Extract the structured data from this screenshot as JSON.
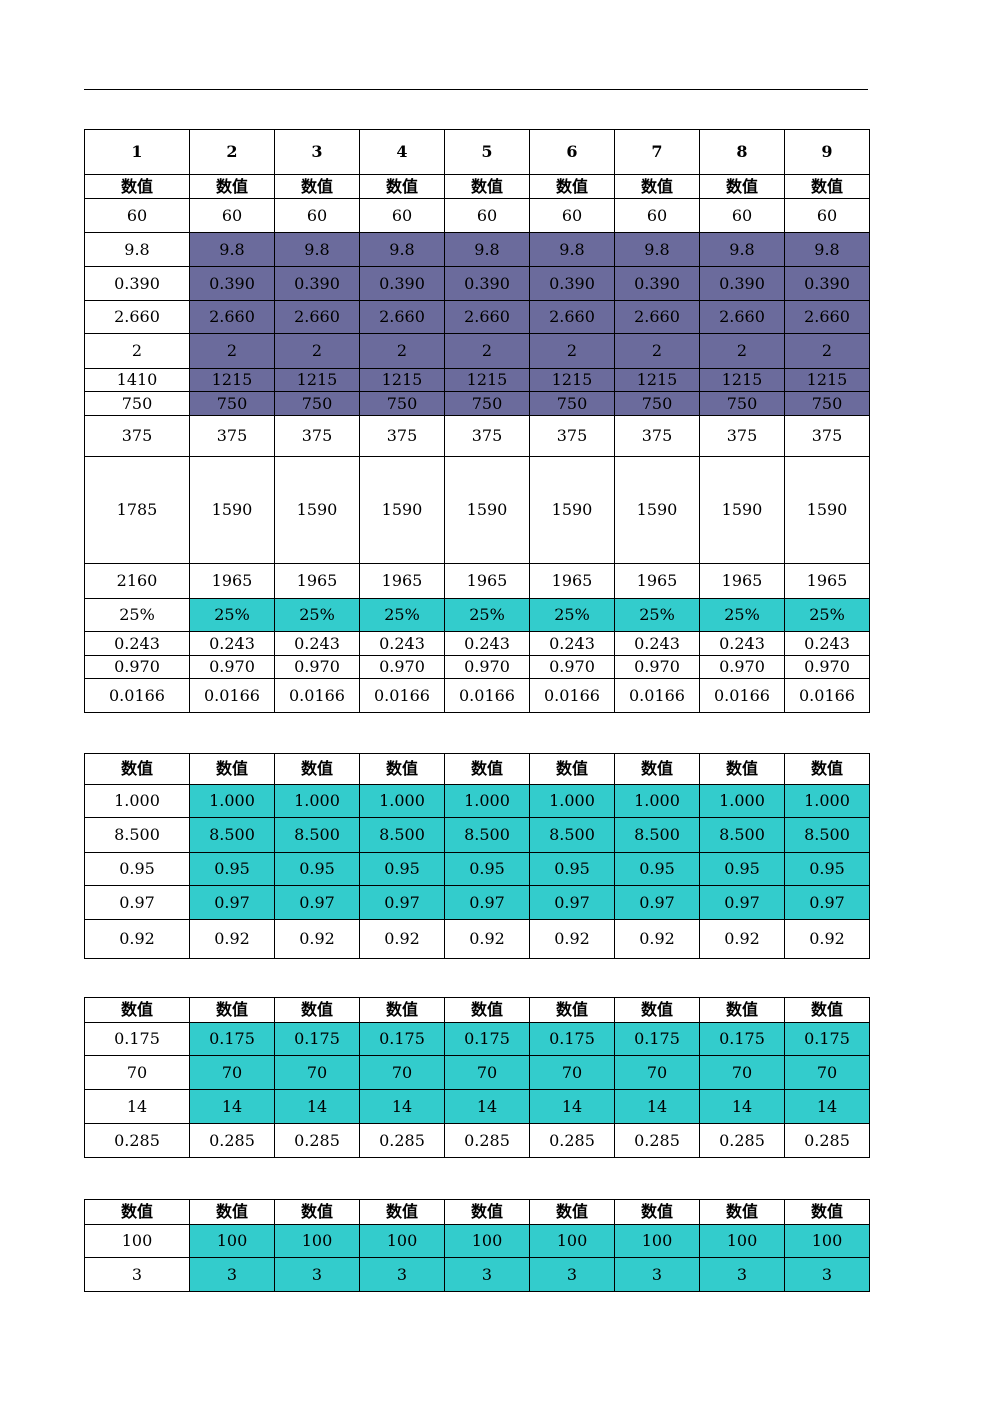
{
  "colors": {
    "purple": "#6b6b9c",
    "teal": "#33cccc",
    "red": "#ff0000"
  },
  "table1": {
    "rows": [
      {
        "style": "hdrbig",
        "fill": "",
        "first_fill": "",
        "cells": [
          "1",
          "2",
          "3",
          "4",
          "5",
          "6",
          "7",
          "8",
          "9"
        ]
      },
      {
        "style": "hdr",
        "fill": "",
        "first_fill": "",
        "cells": [
          "数值",
          "数值",
          "数值",
          "数值",
          "数值",
          "数值",
          "数值",
          "数值",
          "数值"
        ]
      },
      {
        "style": "",
        "fill": "",
        "first_fill": "",
        "cells": [
          "60",
          "60",
          "60",
          "60",
          "60",
          "60",
          "60",
          "60",
          "60"
        ]
      },
      {
        "style": "",
        "fill": "purple",
        "first_fill": "",
        "cells": [
          "9.8",
          "9.8",
          "9.8",
          "9.8",
          "9.8",
          "9.8",
          "9.8",
          "9.8",
          "9.8"
        ]
      },
      {
        "style": "",
        "fill": "purple",
        "first_fill": "",
        "cells": [
          "0.390",
          "0.390",
          "0.390",
          "0.390",
          "0.390",
          "0.390",
          "0.390",
          "0.390",
          "0.390"
        ]
      },
      {
        "style": "",
        "fill": "purple",
        "first_fill": "",
        "cells": [
          "2.660",
          "2.660",
          "2.660",
          "2.660",
          "2.660",
          "2.660",
          "2.660",
          "2.660",
          "2.660"
        ]
      },
      {
        "style": "",
        "fill": "purple",
        "first_fill": "",
        "cells": [
          "2",
          "2",
          "2",
          "2",
          "2",
          "2",
          "2",
          "2",
          "2"
        ]
      },
      {
        "style": "",
        "fill": "purple",
        "first_fill": "",
        "cells": [
          "1410",
          "1215",
          "1215",
          "1215",
          "1215",
          "1215",
          "1215",
          "1215",
          "1215"
        ]
      },
      {
        "style": "",
        "fill": "purple",
        "first_fill": "",
        "cells": [
          "750",
          "750",
          "750",
          "750",
          "750",
          "750",
          "750",
          "750",
          "750"
        ]
      },
      {
        "style": "red",
        "fill": "",
        "first_fill": "",
        "cells": [
          "375",
          "375",
          "375",
          "375",
          "375",
          "375",
          "375",
          "375",
          "375"
        ]
      },
      {
        "style": "red",
        "fill": "",
        "first_fill": "",
        "cells": [
          "1785",
          "1590",
          "1590",
          "1590",
          "1590",
          "1590",
          "1590",
          "1590",
          "1590"
        ]
      },
      {
        "style": "red",
        "fill": "",
        "first_fill": "",
        "cells": [
          "2160",
          "1965",
          "1965",
          "1965",
          "1965",
          "1965",
          "1965",
          "1965",
          "1965"
        ]
      },
      {
        "style": "",
        "fill": "teal",
        "first_fill": "",
        "cells": [
          "25%",
          "25%",
          "25%",
          "25%",
          "25%",
          "25%",
          "25%",
          "25%",
          "25%"
        ]
      },
      {
        "style": "red",
        "fill": "",
        "first_fill": "",
        "cells": [
          "0.243",
          "0.243",
          "0.243",
          "0.243",
          "0.243",
          "0.243",
          "0.243",
          "0.243",
          "0.243"
        ]
      },
      {
        "style": "red",
        "fill": "",
        "first_fill": "",
        "cells": [
          "0.970",
          "0.970",
          "0.970",
          "0.970",
          "0.970",
          "0.970",
          "0.970",
          "0.970",
          "0.970"
        ]
      },
      {
        "style": "red",
        "fill": "",
        "first_fill": "",
        "cells": [
          "0.0166",
          "0.0166",
          "0.0166",
          "0.0166",
          "0.0166",
          "0.0166",
          "0.0166",
          "0.0166",
          "0.0166"
        ]
      }
    ]
  },
  "table2": {
    "rows": [
      {
        "style": "hdr",
        "fill": "",
        "cells": [
          "数值",
          "数值",
          "数值",
          "数值",
          "数值",
          "数值",
          "数值",
          "数值",
          "数值"
        ]
      },
      {
        "style": "",
        "fill": "teal",
        "cells": [
          "1.000",
          "1.000",
          "1.000",
          "1.000",
          "1.000",
          "1.000",
          "1.000",
          "1.000",
          "1.000"
        ]
      },
      {
        "style": "",
        "fill": "teal",
        "cells": [
          "8.500",
          "8.500",
          "8.500",
          "8.500",
          "8.500",
          "8.500",
          "8.500",
          "8.500",
          "8.500"
        ]
      },
      {
        "style": "",
        "fill": "teal",
        "cells": [
          "0.95",
          "0.95",
          "0.95",
          "0.95",
          "0.95",
          "0.95",
          "0.95",
          "0.95",
          "0.95"
        ]
      },
      {
        "style": "",
        "fill": "teal",
        "cells": [
          "0.97",
          "0.97",
          "0.97",
          "0.97",
          "0.97",
          "0.97",
          "0.97",
          "0.97",
          "0.97"
        ]
      },
      {
        "style": "red",
        "fill": "",
        "cells": [
          "0.92",
          "0.92",
          "0.92",
          "0.92",
          "0.92",
          "0.92",
          "0.92",
          "0.92",
          "0.92"
        ]
      }
    ]
  },
  "table3": {
    "rows": [
      {
        "style": "hdr",
        "fill": "",
        "cells": [
          "数值",
          "数值",
          "数值",
          "数值",
          "数值",
          "数值",
          "数值",
          "数值",
          "数值"
        ]
      },
      {
        "style": "",
        "fill": "teal",
        "cells": [
          "0.175",
          "0.175",
          "0.175",
          "0.175",
          "0.175",
          "0.175",
          "0.175",
          "0.175",
          "0.175"
        ]
      },
      {
        "style": "",
        "fill": "teal",
        "cells": [
          "70",
          "70",
          "70",
          "70",
          "70",
          "70",
          "70",
          "70",
          "70"
        ]
      },
      {
        "style": "",
        "fill": "teal",
        "cells": [
          "14",
          "14",
          "14",
          "14",
          "14",
          "14",
          "14",
          "14",
          "14"
        ]
      },
      {
        "style": "red",
        "fill": "",
        "cells": [
          "0.285",
          "0.285",
          "0.285",
          "0.285",
          "0.285",
          "0.285",
          "0.285",
          "0.285",
          "0.285"
        ]
      }
    ]
  },
  "table4": {
    "rows": [
      {
        "style": "hdr",
        "fill": "",
        "cells": [
          "数值",
          "数值",
          "数值",
          "数值",
          "数值",
          "数值",
          "数值",
          "数值",
          "数值"
        ]
      },
      {
        "style": "",
        "fill": "teal",
        "cells": [
          "100",
          "100",
          "100",
          "100",
          "100",
          "100",
          "100",
          "100",
          "100"
        ]
      },
      {
        "style": "",
        "fill": "teal",
        "cells": [
          "3",
          "3",
          "3",
          "3",
          "3",
          "3",
          "3",
          "3",
          "3"
        ]
      }
    ]
  }
}
